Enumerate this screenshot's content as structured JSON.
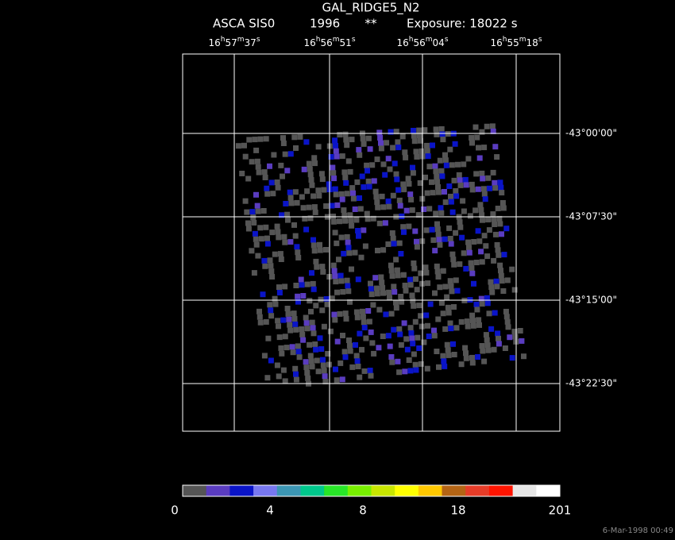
{
  "header": {
    "title": "GAL_RIDGE5_N2",
    "instrument": "ASCA SIS0",
    "year": "1996",
    "flag": "**",
    "exposure": "Exposure: 18022 s"
  },
  "ra_labels": [
    "16h57m37s",
    "16h56m51s",
    "16h56m04s",
    "16h55m18s"
  ],
  "dec_labels": [
    "-43°00'00\"",
    "-43°07'30\"",
    "-43°15'00\"",
    "-43°22'30\""
  ],
  "colorbar": {
    "colors": [
      "#555555",
      "#5a3cc0",
      "#0a14c8",
      "#7878f0",
      "#3c96b4",
      "#00c88c",
      "#28e628",
      "#78f000",
      "#c8e600",
      "#ffff00",
      "#ffc800",
      "#b46414",
      "#e63c28",
      "#ff1400",
      "#e6e6e6",
      "#ffffff"
    ],
    "labels": [
      "0",
      "4",
      "8",
      "18",
      "201"
    ]
  },
  "timestamp": "6-Mar-1998 00:49"
}
